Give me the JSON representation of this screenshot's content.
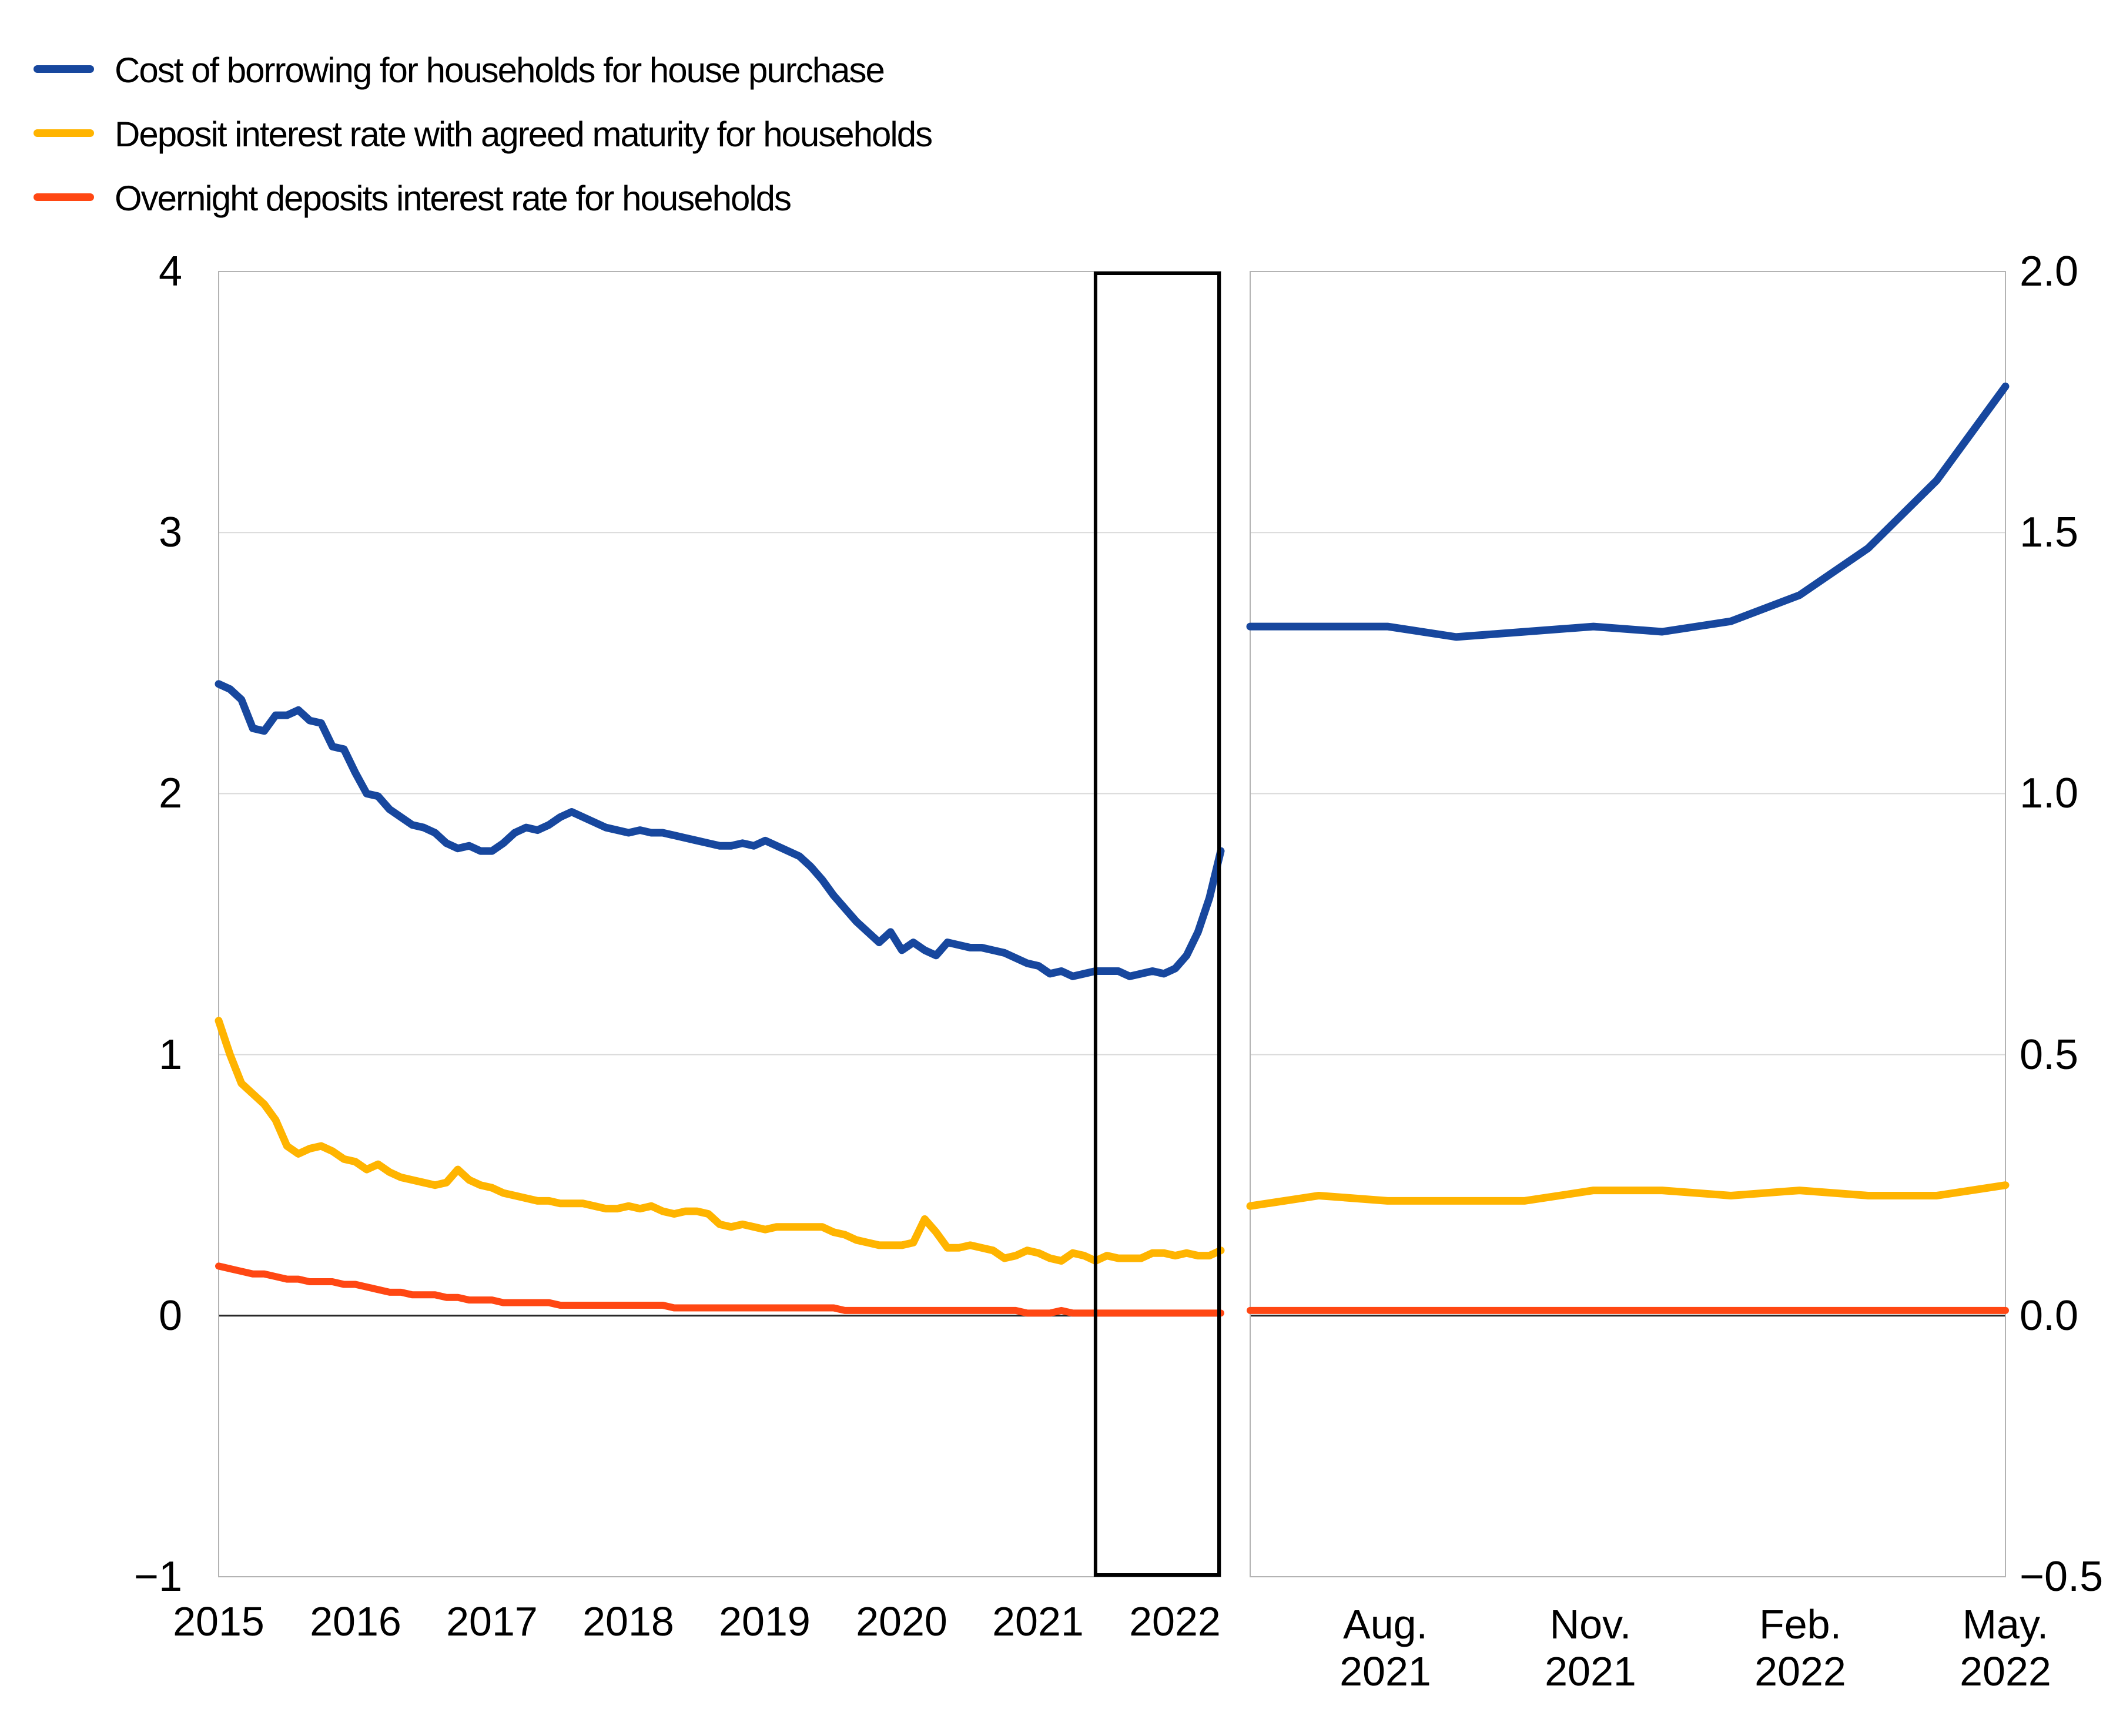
{
  "legend": {
    "items": [
      {
        "label": "Cost of borrowing for households for house purchase",
        "color": "#17479e"
      },
      {
        "label": "Deposit interest rate with agreed maturity for households",
        "color": "#ffb400"
      },
      {
        "label": "Overnight deposits interest rate for households",
        "color": "#ff4713"
      }
    ]
  },
  "chart_data": {
    "type": "line",
    "unit": "percent per annum",
    "grid": "horizontal gridlines on, zero line emphasized",
    "panels": [
      {
        "id": "full-history",
        "x_range": "Jan 2015 - May 2022, monthly",
        "ylim": [
          -1,
          4
        ]
      },
      {
        "id": "zoom-last-12-months",
        "x_range": "Jun 2021 - May 2022, monthly",
        "ylim": [
          -0.5,
          2.0
        ]
      }
    ],
    "left_panel": {
      "y_tick_labels": [
        "4",
        "3",
        "2",
        "1",
        "0",
        "−1"
      ],
      "x_tick_labels": [
        "2015",
        "2016",
        "2017",
        "2018",
        "2019",
        "2020",
        "2021",
        "2022"
      ],
      "highlight_box": {
        "from": "Jun 2021",
        "to": "May 2022"
      },
      "series": [
        {
          "name": "Cost of borrowing for households for house purchase",
          "color": "#17479e",
          "values": [
            2.42,
            2.4,
            2.36,
            2.25,
            2.24,
            2.3,
            2.3,
            2.32,
            2.28,
            2.27,
            2.18,
            2.17,
            2.08,
            2.0,
            1.99,
            1.94,
            1.91,
            1.88,
            1.87,
            1.85,
            1.81,
            1.79,
            1.8,
            1.78,
            1.78,
            1.81,
            1.85,
            1.87,
            1.86,
            1.88,
            1.91,
            1.93,
            1.91,
            1.89,
            1.87,
            1.86,
            1.85,
            1.86,
            1.85,
            1.85,
            1.84,
            1.83,
            1.82,
            1.81,
            1.8,
            1.8,
            1.81,
            1.8,
            1.82,
            1.8,
            1.78,
            1.76,
            1.72,
            1.67,
            1.61,
            1.56,
            1.51,
            1.47,
            1.43,
            1.47,
            1.4,
            1.43,
            1.4,
            1.38,
            1.43,
            1.42,
            1.41,
            1.41,
            1.4,
            1.39,
            1.37,
            1.35,
            1.34,
            1.31,
            1.32,
            1.3,
            1.31,
            1.32,
            1.32,
            1.32,
            1.3,
            1.31,
            1.32,
            1.31,
            1.33,
            1.38,
            1.47,
            1.6,
            1.78
          ]
        },
        {
          "name": "Deposit interest rate with agreed maturity for households",
          "color": "#ffb400",
          "values": [
            1.13,
            1.0,
            0.89,
            0.85,
            0.81,
            0.75,
            0.65,
            0.62,
            0.64,
            0.65,
            0.63,
            0.6,
            0.59,
            0.56,
            0.58,
            0.55,
            0.53,
            0.52,
            0.51,
            0.5,
            0.51,
            0.56,
            0.52,
            0.5,
            0.49,
            0.47,
            0.46,
            0.45,
            0.44,
            0.44,
            0.43,
            0.43,
            0.43,
            0.42,
            0.41,
            0.41,
            0.42,
            0.41,
            0.42,
            0.4,
            0.39,
            0.4,
            0.4,
            0.39,
            0.35,
            0.34,
            0.35,
            0.34,
            0.33,
            0.34,
            0.34,
            0.34,
            0.34,
            0.34,
            0.32,
            0.31,
            0.29,
            0.28,
            0.27,
            0.27,
            0.27,
            0.28,
            0.37,
            0.32,
            0.26,
            0.26,
            0.27,
            0.26,
            0.25,
            0.22,
            0.23,
            0.25,
            0.24,
            0.22,
            0.21,
            0.24,
            0.23,
            0.21,
            0.23,
            0.22,
            0.22,
            0.22,
            0.24,
            0.24,
            0.23,
            0.24,
            0.23,
            0.23,
            0.25
          ]
        },
        {
          "name": "Overnight deposits interest rate for households",
          "color": "#ff4713",
          "values": [
            0.19,
            0.18,
            0.17,
            0.16,
            0.16,
            0.15,
            0.14,
            0.14,
            0.13,
            0.13,
            0.13,
            0.12,
            0.12,
            0.11,
            0.1,
            0.09,
            0.09,
            0.08,
            0.08,
            0.08,
            0.07,
            0.07,
            0.06,
            0.06,
            0.06,
            0.05,
            0.05,
            0.05,
            0.05,
            0.05,
            0.04,
            0.04,
            0.04,
            0.04,
            0.04,
            0.04,
            0.04,
            0.04,
            0.04,
            0.04,
            0.03,
            0.03,
            0.03,
            0.03,
            0.03,
            0.03,
            0.03,
            0.03,
            0.03,
            0.03,
            0.03,
            0.03,
            0.03,
            0.03,
            0.03,
            0.02,
            0.02,
            0.02,
            0.02,
            0.02,
            0.02,
            0.02,
            0.02,
            0.02,
            0.02,
            0.02,
            0.02,
            0.02,
            0.02,
            0.02,
            0.02,
            0.01,
            0.01,
            0.01,
            0.02,
            0.01,
            0.01,
            0.01,
            0.01,
            0.01,
            0.01,
            0.01,
            0.01,
            0.01,
            0.01,
            0.01,
            0.01,
            0.01,
            0.01
          ]
        }
      ]
    },
    "right_panel": {
      "y_tick_labels": [
        "2.0",
        "1.5",
        "1.0",
        "0.5",
        "0.0",
        "−0.5"
      ],
      "x_tick_labels": [
        [
          "Aug.",
          "2021"
        ],
        [
          "Nov.",
          "2021"
        ],
        [
          "Feb.",
          "2022"
        ],
        [
          "May.",
          "2022"
        ]
      ],
      "series": [
        {
          "name": "Cost of borrowing for households for house purchase",
          "color": "#17479e",
          "values": [
            1.32,
            1.32,
            1.32,
            1.3,
            1.31,
            1.32,
            1.31,
            1.33,
            1.38,
            1.47,
            1.6,
            1.78
          ]
        },
        {
          "name": "Deposit interest rate with agreed maturity for households",
          "color": "#ffb400",
          "values": [
            0.21,
            0.23,
            0.22,
            0.22,
            0.22,
            0.24,
            0.24,
            0.23,
            0.24,
            0.23,
            0.23,
            0.25
          ]
        },
        {
          "name": "Overnight deposits interest rate for households",
          "color": "#ff4713",
          "values": [
            0.01,
            0.01,
            0.01,
            0.01,
            0.01,
            0.01,
            0.01,
            0.01,
            0.01,
            0.01,
            0.01,
            0.01
          ]
        }
      ]
    }
  }
}
